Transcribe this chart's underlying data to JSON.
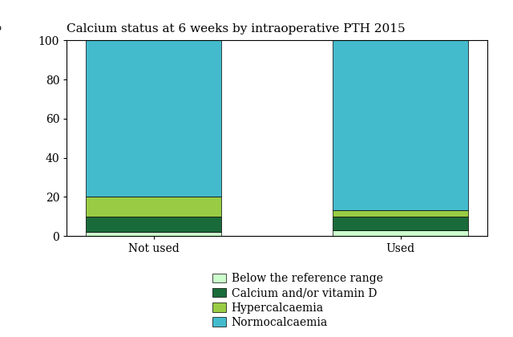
{
  "title": "Calcium status at 6 weeks by intraoperative PTH 2015",
  "ylabel": "%",
  "categories": [
    "Not used",
    "Used"
  ],
  "series": [
    {
      "label": "Below the reference range",
      "values": [
        2,
        3
      ],
      "color": "#ccffcc"
    },
    {
      "label": "Calcium and/or vitamin D",
      "values": [
        8,
        7
      ],
      "color": "#1a6b3a"
    },
    {
      "label": "Hypercalcaemia",
      "values": [
        10,
        3
      ],
      "color": "#99cc44"
    },
    {
      "label": "Normocalcaemia",
      "values": [
        80,
        87
      ],
      "color": "#44bbcc"
    }
  ],
  "ylim": [
    0,
    100
  ],
  "yticks": [
    0,
    20,
    40,
    60,
    80,
    100
  ],
  "title_fontsize": 11,
  "axis_fontsize": 10,
  "legend_fontsize": 10,
  "bar_width": 0.55,
  "figsize": [
    6.4,
    4.2
  ],
  "dpi": 100,
  "background_color": "#ffffff"
}
